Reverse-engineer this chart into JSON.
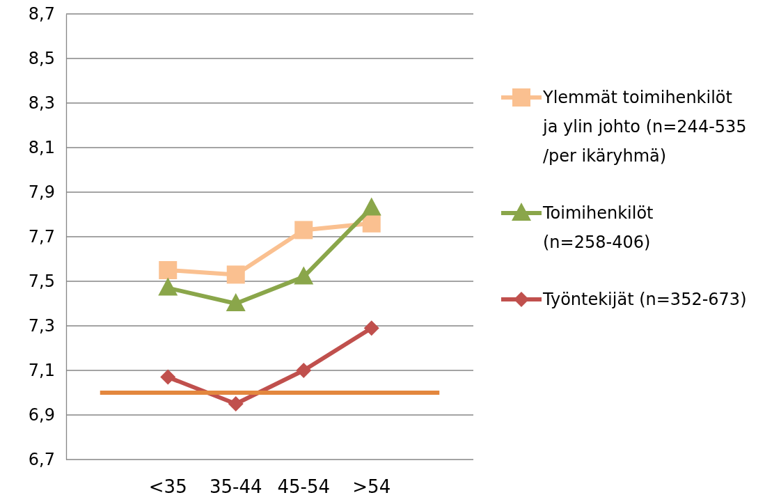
{
  "chart_data": {
    "type": "line",
    "categories": [
      null,
      "<35",
      "35-44",
      "45-54",
      ">54",
      null
    ],
    "ylim": [
      6.7,
      8.7
    ],
    "yticks": [
      {
        "value": 6.7,
        "label": "6,7"
      },
      {
        "value": 6.9,
        "label": "6,9"
      },
      {
        "value": 7.1,
        "label": "7,1"
      },
      {
        "value": 7.3,
        "label": "7,3"
      },
      {
        "value": 7.5,
        "label": "7,5"
      },
      {
        "value": 7.7,
        "label": "7,7"
      },
      {
        "value": 7.9,
        "label": "7,9"
      },
      {
        "value": 8.1,
        "label": "8,1"
      },
      {
        "value": 8.3,
        "label": "8,3"
      },
      {
        "value": 8.5,
        "label": "8,5"
      },
      {
        "value": 8.7,
        "label": "8,7"
      }
    ],
    "grid": "y",
    "legend": "right",
    "series": [
      {
        "name": "Ylemmät toimihenkilöt ja ylin johto (n=244-535 /per ikäryhmä)",
        "color": "#fac090",
        "marker": "square",
        "values": [
          null,
          7.55,
          7.53,
          7.73,
          7.76,
          null
        ]
      },
      {
        "name": "Toimihenkilöt (n=258-406)",
        "color": "#8aa64a",
        "marker": "triangle",
        "values": [
          null,
          7.47,
          7.4,
          7.52,
          7.83,
          null
        ]
      },
      {
        "name": "Työntekijät (n=352-673)",
        "color": "#c0504d",
        "marker": "diamond",
        "values": [
          null,
          7.07,
          6.95,
          7.1,
          7.29,
          null
        ]
      },
      {
        "color": "#e3873e",
        "marker": "none",
        "values": [
          7.0,
          7.0,
          7.0,
          7.0,
          7.0,
          7.0
        ]
      }
    ]
  }
}
